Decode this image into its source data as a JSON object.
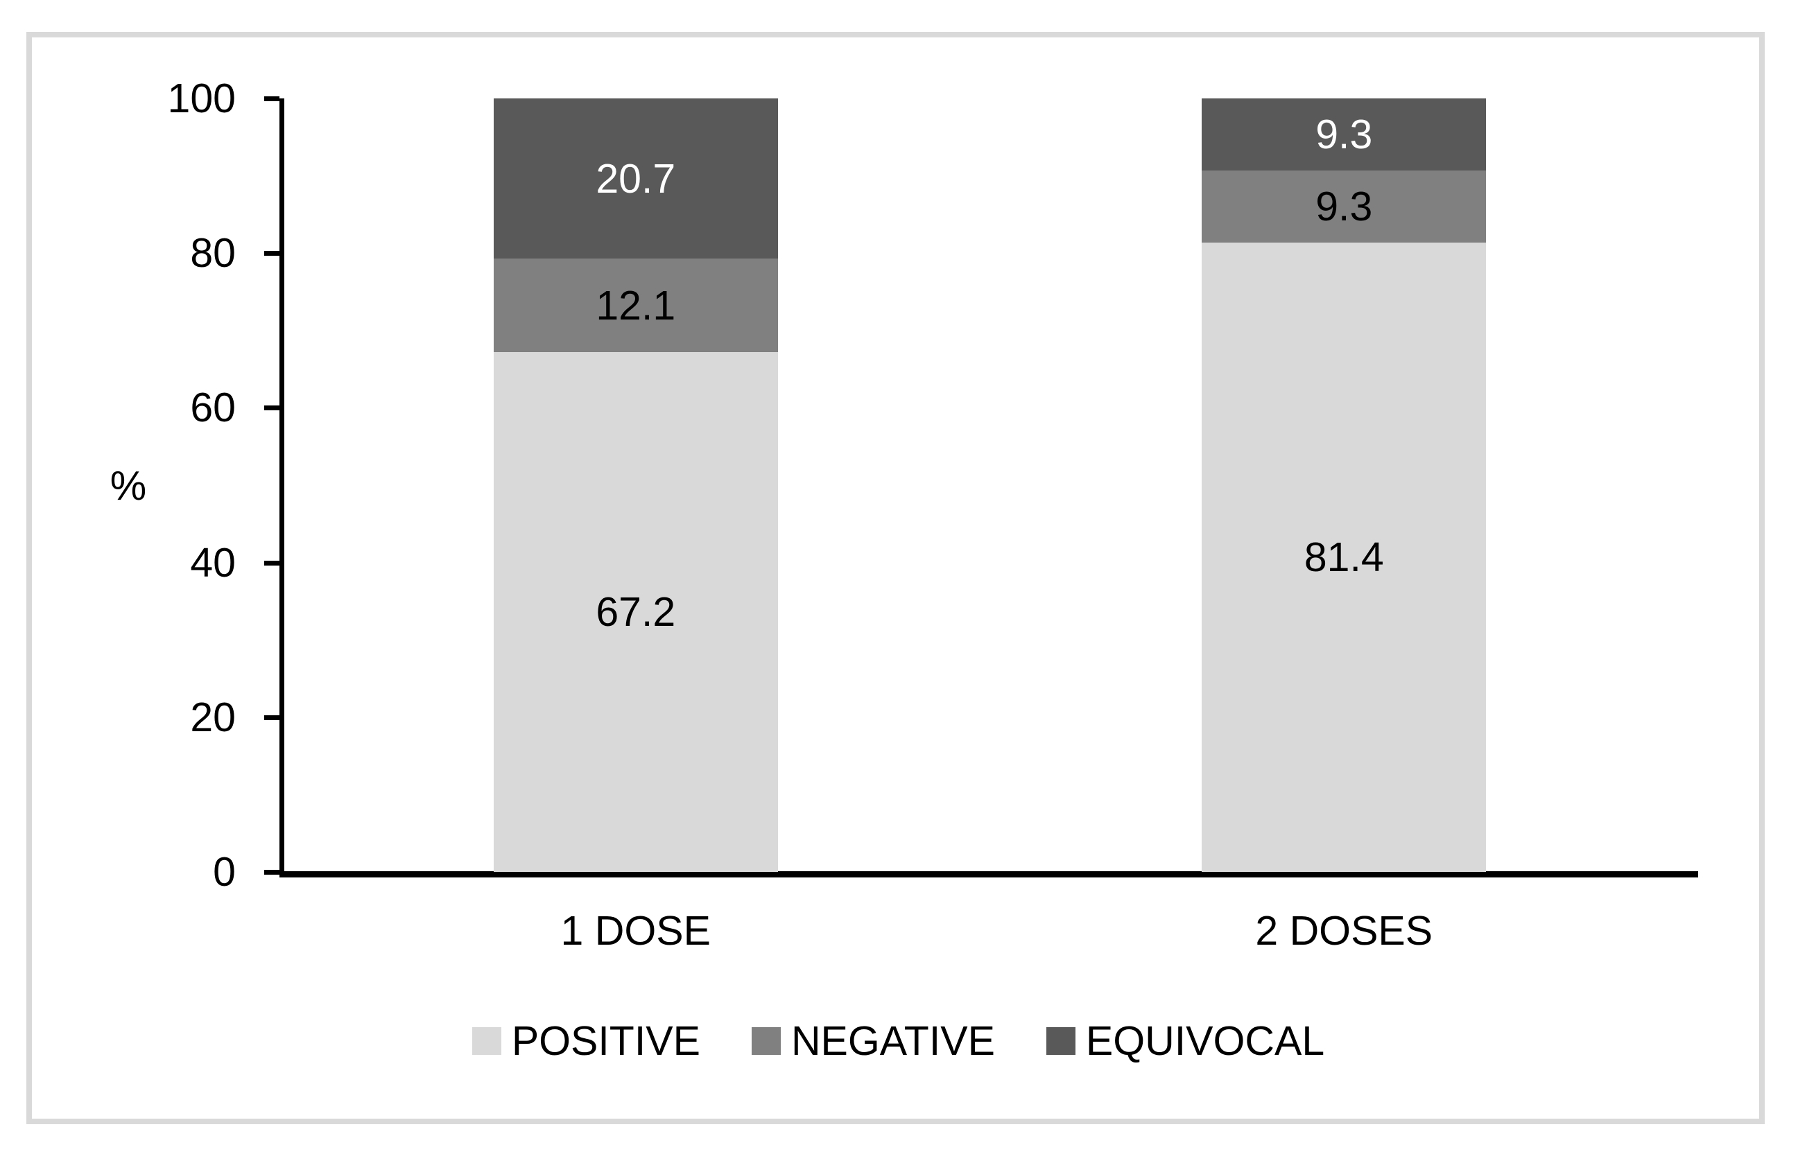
{
  "chart_data": {
    "type": "bar",
    "stacked": true,
    "title": "",
    "categories": [
      "1 DOSE",
      "2 DOSES"
    ],
    "series": [
      {
        "name": "POSITIVE",
        "values": [
          67.2,
          81.4
        ],
        "color": "#D9D9D9",
        "label_color": "#000000"
      },
      {
        "name": "NEGATIVE",
        "values": [
          12.1,
          9.3
        ],
        "color": "#808080",
        "label_color": "#000000"
      },
      {
        "name": "EQUIVOCAL",
        "values": [
          20.7,
          9.3
        ],
        "color": "#595959",
        "label_color": "#FFFFFF"
      }
    ],
    "xlabel": "",
    "ylabel": "%",
    "ylim": [
      0,
      100
    ],
    "yticks": [
      0,
      20,
      40,
      60,
      80,
      100
    ],
    "grid": false,
    "data_labels": true,
    "legend_position": "bottom",
    "axis_color": "#000000",
    "frame_color": "#D9D9D9",
    "background_color": "#FFFFFF"
  }
}
